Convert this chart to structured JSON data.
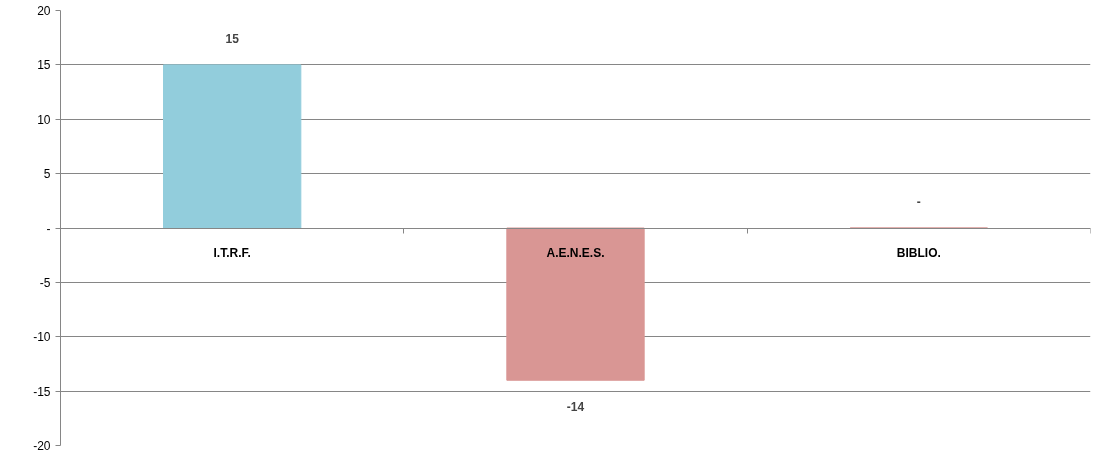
{
  "chart_data": {
    "type": "bar",
    "categories": [
      "I.T.R.F.",
      "A.E.N.E.S.",
      "BIBLIO."
    ],
    "values": [
      15,
      -14,
      0
    ],
    "colors": [
      "#92cddc",
      "#d99694",
      "#d99694"
    ],
    "value_labels": [
      "15",
      "-14",
      "-"
    ],
    "ylim": [
      -20,
      20
    ],
    "yticks": [
      -20,
      -15,
      -10,
      -5,
      {
        "value": 0,
        "label": "-"
      },
      5,
      10,
      15,
      20
    ],
    "grid": "y"
  }
}
